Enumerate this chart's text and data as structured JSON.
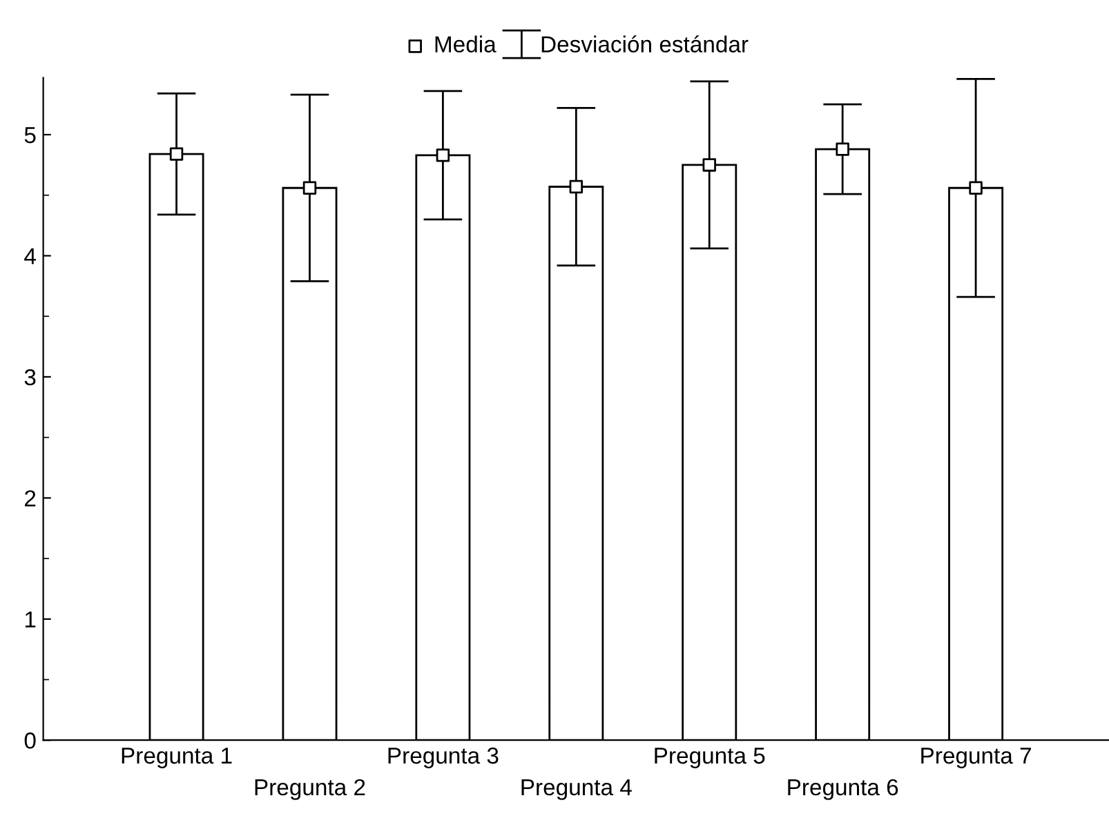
{
  "chart_data": {
    "type": "bar",
    "categories": [
      "Pregunta 1",
      "Pregunta 2",
      "Pregunta 3",
      "Pregunta 4",
      "Pregunta 5",
      "Pregunta 6",
      "Pregunta 7"
    ],
    "series": [
      {
        "color": "#ffffff",
        "values": [
          4.84,
          4.56,
          4.83,
          4.57,
          4.75,
          4.88,
          4.56
        ]
      },
      {
        "type": "scatter",
        "name": "Media",
        "color": "#ffffff",
        "x": [
          "Pregunta 1",
          "Pregunta 2",
          "Pregunta 3",
          "Pregunta 4",
          "Pregunta 5",
          "Pregunta 6",
          "Pregunta 7"
        ],
        "values": [
          4.84,
          4.56,
          4.83,
          4.57,
          4.75,
          4.88,
          4.56
        ],
        "errors": [
          0.5,
          0.77,
          0.53,
          0.65,
          0.69,
          0.37,
          0.9
        ]
      }
    ],
    "annotations": [
      "Desviación estándar"
    ],
    "ylim": [
      0,
      5.47
    ],
    "yticks": [
      0,
      1,
      2,
      3,
      4,
      5
    ],
    "marker": "square",
    "grid": false,
    "legend": "top"
  }
}
